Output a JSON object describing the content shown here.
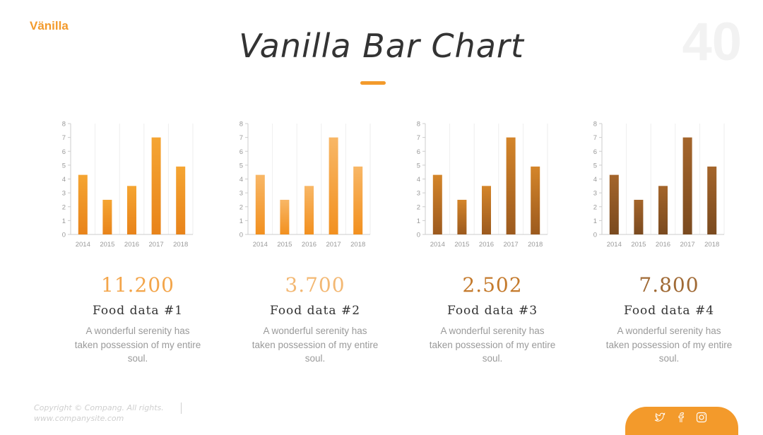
{
  "brand": "Vänilla",
  "page_number": "40",
  "title": "Vanilla Bar Chart",
  "colors": {
    "accent": "#f39a2b",
    "text": "#333333",
    "muted": "#9a9a9a",
    "axis": "#cccccc"
  },
  "items": [
    {
      "value": "11.200",
      "title": "Food data #1",
      "desc": "A wonderful serenity has taken possession of my entire soul.",
      "value_color": "#f3a54a"
    },
    {
      "value": "3.700",
      "title": "Food data #2",
      "desc": "A wonderful serenity has taken possession of my entire soul.",
      "value_color": "#f3b873"
    },
    {
      "value": "2.502",
      "title": "Food data #3",
      "desc": "A wonderful serenity has taken possession of my entire soul.",
      "value_color": "#c47a2c"
    },
    {
      "value": "7.800",
      "title": "Food data #4",
      "desc": "A wonderful serenity has taken possession of my entire soul.",
      "value_color": "#a06a35"
    }
  ],
  "chart_data": [
    {
      "type": "bar",
      "categories": [
        "2014",
        "2015",
        "2016",
        "2017",
        "2018"
      ],
      "values": [
        4.3,
        2.5,
        3.5,
        7.0,
        4.9
      ],
      "ylim": [
        0,
        8
      ],
      "yticks": [
        0,
        1,
        2,
        3,
        4,
        5,
        6,
        7,
        8
      ],
      "grid": "vertical",
      "bar_color_top": "#f5a532",
      "bar_color_bottom": "#e8831a"
    },
    {
      "type": "bar",
      "categories": [
        "2014",
        "2015",
        "2016",
        "2017",
        "2018"
      ],
      "values": [
        4.3,
        2.5,
        3.5,
        7.0,
        4.9
      ],
      "ylim": [
        0,
        8
      ],
      "yticks": [
        0,
        1,
        2,
        3,
        4,
        5,
        6,
        7,
        8
      ],
      "grid": "vertical",
      "bar_color_top": "#f8b766",
      "bar_color_bottom": "#f2901f"
    },
    {
      "type": "bar",
      "categories": [
        "2014",
        "2015",
        "2016",
        "2017",
        "2018"
      ],
      "values": [
        4.3,
        2.5,
        3.5,
        7.0,
        4.9
      ],
      "ylim": [
        0,
        8
      ],
      "yticks": [
        0,
        1,
        2,
        3,
        4,
        5,
        6,
        7,
        8
      ],
      "grid": "vertical",
      "bar_color_top": "#d4852a",
      "bar_color_bottom": "#9c5a1e"
    },
    {
      "type": "bar",
      "categories": [
        "2014",
        "2015",
        "2016",
        "2017",
        "2018"
      ],
      "values": [
        4.3,
        2.5,
        3.5,
        7.0,
        4.9
      ],
      "ylim": [
        0,
        8
      ],
      "yticks": [
        0,
        1,
        2,
        3,
        4,
        5,
        6,
        7,
        8
      ],
      "grid": "vertical",
      "bar_color_top": "#a4652b",
      "bar_color_bottom": "#7a4a1f"
    }
  ],
  "footer": {
    "copyright": "Copyright © Compang. All rights.",
    "website": "www.companysite.com"
  },
  "social_icons": [
    "twitter-icon",
    "facebook-icon",
    "instagram-icon"
  ]
}
